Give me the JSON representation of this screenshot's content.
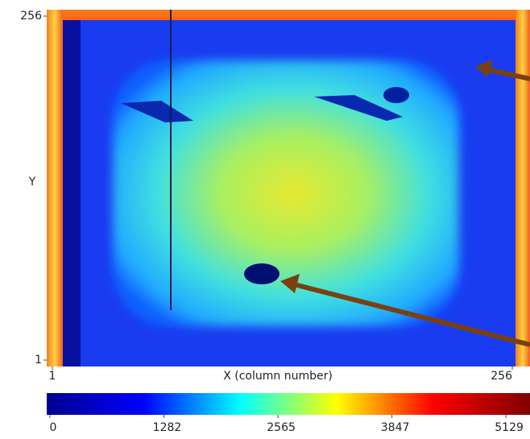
{
  "chart_data": {
    "type": "heatmap",
    "xlabel": "X (column number)",
    "ylabel": "Y",
    "xlim": [
      1,
      256
    ],
    "ylim": [
      1,
      256
    ],
    "xticks": [
      1,
      256
    ],
    "yticks": [
      1,
      256
    ],
    "colorbar": {
      "lim": [
        0,
        5400
      ],
      "ticks": [
        0,
        1282,
        2565,
        3847,
        5129
      ],
      "colors": [
        "#00008f",
        "#0000ff",
        "#00ffff",
        "#ffff00",
        "#ff0000",
        "#800000"
      ]
    }
  }
}
